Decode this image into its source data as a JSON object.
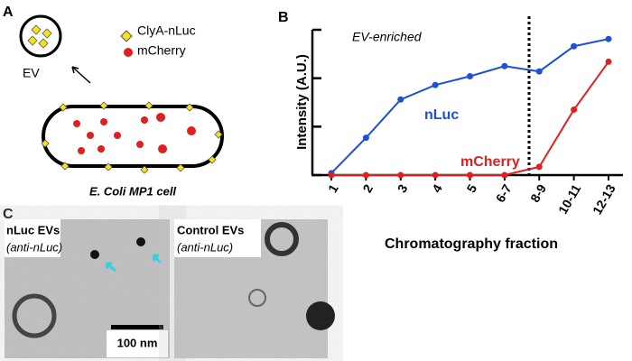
{
  "panel_a": {
    "label": "A",
    "legend": [
      "ClyA-nLuc",
      "mCherry"
    ],
    "ev_label": "EV",
    "cell_label": "E. Coli MP1 cell"
  },
  "chart_data": {
    "type": "line",
    "panel_label": "B",
    "annotation": "EV-enriched",
    "y_label": "Intensity (A.U.)",
    "x_label": "Chromatography fraction",
    "categories": [
      "1",
      "2",
      "3",
      "4",
      "5",
      "6-7",
      "8-9",
      "10-11",
      "12-13"
    ],
    "series": [
      {
        "name": "nLuc",
        "color": "#1f4fd8",
        "values": [
          0.04,
          0.77,
          1.56,
          1.86,
          2.04,
          2.25,
          2.14,
          2.66,
          2.81
        ]
      },
      {
        "name": "mCherry",
        "color": "#e02020",
        "values": [
          0,
          0,
          0,
          0,
          0,
          0,
          0.17,
          1.35,
          2.34
        ]
      }
    ],
    "ylim": [
      0,
      3
    ],
    "yticks": [
      0,
      1,
      2,
      3
    ]
  },
  "panel_c": {
    "label": "C",
    "left_title": "nLuc EVs",
    "left_subtitle": "(anti-nLuc)",
    "right_title": "Control EVs",
    "right_subtitle": "(anti-nLuc)",
    "scale_bar": "100 nm"
  }
}
